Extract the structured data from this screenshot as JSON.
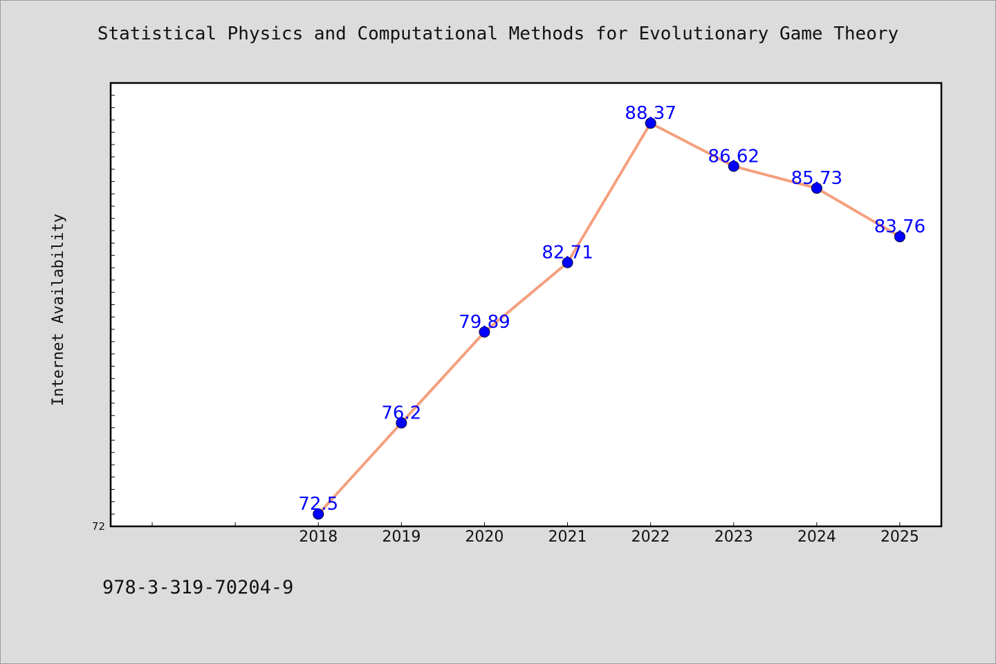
{
  "chart_data": {
    "type": "line",
    "title": "Statistical Physics and Computational Methods for Evolutionary Game Theory",
    "ylabel": "Internet Availability",
    "xlabel": "",
    "x": [
      "2018",
      "2019",
      "2020",
      "2021",
      "2022",
      "2023",
      "2024",
      "2025"
    ],
    "x_axis_range": [
      2015.5,
      2025.5
    ],
    "series": [
      {
        "values": [
          72.5,
          76.2,
          79.89,
          82.71,
          88.37,
          86.62,
          85.73,
          83.76
        ],
        "labels": [
          "72.5",
          "76.2",
          "79.89",
          "82.71",
          "88.37",
          "86.62",
          "85.73",
          "83.76"
        ]
      }
    ],
    "ylim": [
      72,
      90
    ],
    "ytick_labels": [
      "72"
    ],
    "grid": false,
    "legend": "none",
    "colors": {
      "line": "#f4a07e",
      "marker": "#0000ff",
      "label": "#0000ff",
      "background": "#dcdcdc",
      "plot_background": "#ffffff"
    }
  },
  "footer": {
    "code": "978-3-319-70204-9"
  }
}
